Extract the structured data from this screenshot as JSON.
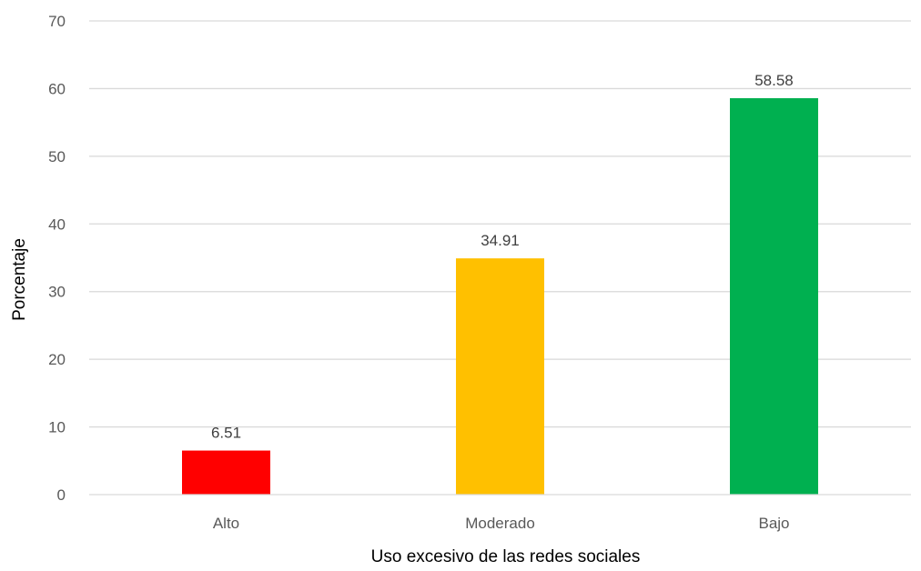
{
  "chart_data": {
    "type": "bar",
    "title": "",
    "xlabel": "Uso excesivo de las redes sociales",
    "ylabel": "Porcentaje",
    "categories": [
      "Alto",
      "Moderado",
      "Bajo"
    ],
    "values": [
      6.51,
      34.91,
      58.58
    ],
    "value_labels": [
      "6.51",
      "34.91",
      "58.58"
    ],
    "colors": [
      "#FF0000",
      "#FFC000",
      "#00B050"
    ],
    "ylim": [
      0,
      70
    ],
    "yticks": [
      0,
      10,
      20,
      30,
      40,
      50,
      60,
      70
    ],
    "grid": true,
    "legend": "none"
  }
}
